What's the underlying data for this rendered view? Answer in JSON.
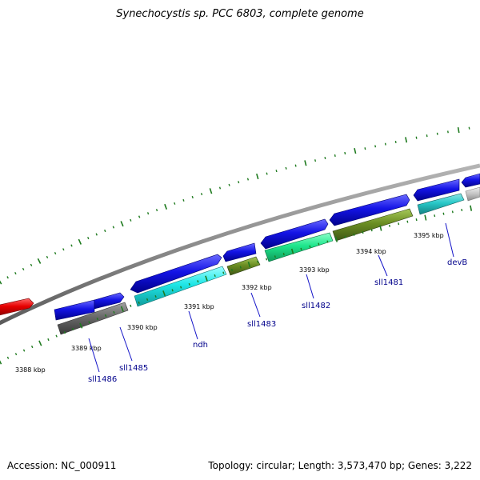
{
  "title": "Synechocystis sp. PCC 6803, complete genome",
  "footer": {
    "accession": "Accession: NC_000911",
    "stats": "Topology: circular; Length: 3,573,470 bp; Genes: 3,222"
  },
  "colors": {
    "backbone": "#8c8c8c",
    "tick": "#1e7a1e",
    "gene_label": "#00008b",
    "cds_blue": "#1414e6",
    "red": "#e60000",
    "gray": "#696969",
    "cyan": "#1ee6e6",
    "olive": "#6b8e23",
    "aquamarine": "#1ee68c",
    "teal": "#28c8c8",
    "light_gray": "#c8c8c8"
  },
  "kbp_labels": [
    "3388 kbp",
    "3389 kbp",
    "3390 kbp",
    "3391 kbp",
    "3392 kbp",
    "3393 kbp",
    "3394 kbp",
    "3395 kbp"
  ],
  "gene_labels": [
    "sll1486",
    "sll1485",
    "ndh",
    "sll1483",
    "sll1482",
    "sll1481",
    "devB"
  ]
}
